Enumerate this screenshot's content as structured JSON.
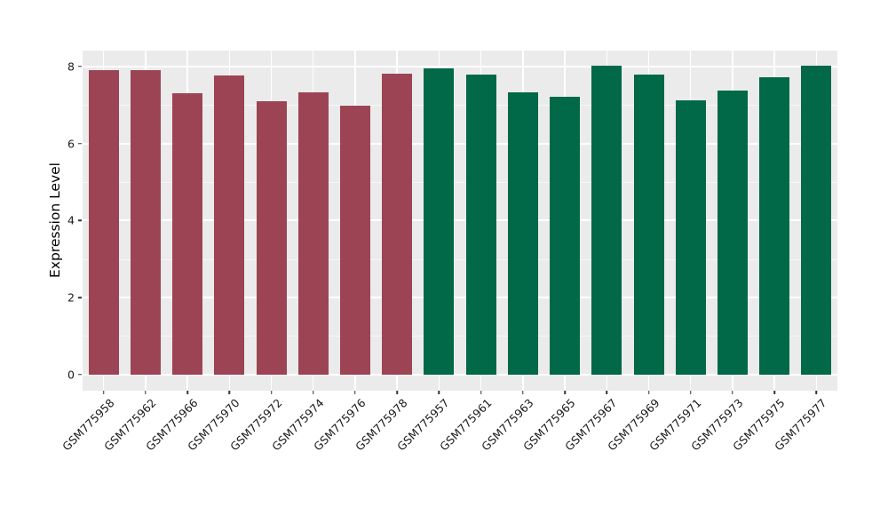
{
  "chart_data": {
    "type": "bar",
    "title": "",
    "xlabel": "",
    "ylabel": "Expression Level",
    "yticks": [
      0,
      2,
      4,
      6,
      8
    ],
    "ylim": [
      0,
      8.4
    ],
    "legend": "none",
    "grid": "on",
    "panel_background_color": "#EBEBEB",
    "gridline_color": "#FFFFFF",
    "categories": [
      "GSM775958",
      "GSM775962",
      "GSM775966",
      "GSM775970",
      "GSM775972",
      "GSM775974",
      "GSM775976",
      "GSM775978",
      "GSM775957",
      "GSM775961",
      "GSM775963",
      "GSM775965",
      "GSM775967",
      "GSM775969",
      "GSM775971",
      "GSM775973",
      "GSM775975",
      "GSM775977"
    ],
    "groups": [
      {
        "name": "group-red",
        "color": "#9D4454",
        "samples": [
          {
            "label": "GSM775958",
            "value": 7.9
          },
          {
            "label": "GSM775962",
            "value": 7.9
          },
          {
            "label": "GSM775966",
            "value": 7.31
          },
          {
            "label": "GSM775970",
            "value": 7.76
          },
          {
            "label": "GSM775972",
            "value": 7.09
          },
          {
            "label": "GSM775974",
            "value": 7.34
          },
          {
            "label": "GSM775976",
            "value": 6.98
          },
          {
            "label": "GSM775978",
            "value": 7.82
          }
        ]
      },
      {
        "name": "group-green",
        "color": "#016848",
        "samples": [
          {
            "label": "GSM775957",
            "value": 7.96
          },
          {
            "label": "GSM775961",
            "value": 7.8
          },
          {
            "label": "GSM775963",
            "value": 7.34
          },
          {
            "label": "GSM775965",
            "value": 7.22
          },
          {
            "label": "GSM775967",
            "value": 8.03
          },
          {
            "label": "GSM775969",
            "value": 7.78
          },
          {
            "label": "GSM775971",
            "value": 7.13
          },
          {
            "label": "GSM775973",
            "value": 7.38
          },
          {
            "label": "GSM775975",
            "value": 7.72
          },
          {
            "label": "GSM775977",
            "value": 8.03
          }
        ]
      }
    ]
  }
}
